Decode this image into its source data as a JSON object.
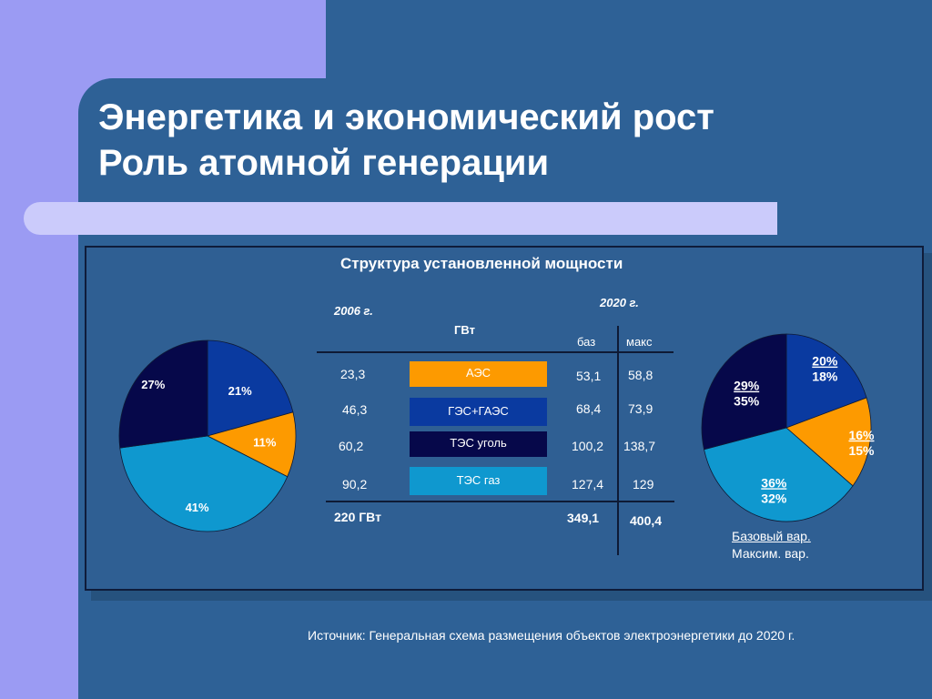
{
  "title": {
    "line1": "Энергетика и экономический рост",
    "line2": "Роль атомной генерации"
  },
  "panel_title": "Структура установленной мощности",
  "unit": "ГВт",
  "year_left": "2006 г.",
  "year_right": "2020 г.",
  "col_base": "баз",
  "col_max": "макс",
  "colors": {
    "aes": "#fd9a00",
    "ges": "#0a3aa0",
    "tes_coal": "#06084a",
    "tes_gas": "#0f98cf"
  },
  "rows": [
    {
      "label": "АЭС",
      "v2006": "23,3",
      "base": "53,1",
      "max": "58,8"
    },
    {
      "label": "ГЭС+ГАЭС",
      "v2006": "46,3",
      "base": "68,4",
      "max": "73,9"
    },
    {
      "label": "ТЭС уголь",
      "v2006": "60,2",
      "base": "100,2",
      "max": "138,7"
    },
    {
      "label": "ТЭС газ",
      "v2006": "90,2",
      "base": "127,4",
      "max": "129"
    }
  ],
  "totals": {
    "v2006": "220 ГВт",
    "base": "349,1",
    "max": "400,4"
  },
  "legend": {
    "base": "Базовый вар.",
    "max": "Максим. вар."
  },
  "source": "Источник: Генеральная схема размещения объектов электроэнергетики до 2020 г.",
  "chart_data": [
    {
      "type": "pie",
      "title": "2006 г.",
      "categories": [
        "ГЭС+ГАЭС",
        "АЭС",
        "ТЭС газ",
        "ТЭС уголь"
      ],
      "values": [
        21,
        11,
        41,
        27
      ],
      "labels": [
        "21%",
        "11%",
        "41%",
        "27%"
      ],
      "colors": [
        "#0a3aa0",
        "#fd9a00",
        "#0f98cf",
        "#06084a"
      ]
    },
    {
      "type": "pie",
      "title": "2020 г.",
      "categories": [
        "ГЭС+ГАЭС",
        "АЭС",
        "ТЭС газ",
        "ТЭС уголь"
      ],
      "series": [
        {
          "name": "Базовый вар.",
          "values": [
            20,
            16,
            36,
            29
          ],
          "labels": [
            "20%",
            "16%",
            "36%",
            "29%"
          ]
        },
        {
          "name": "Максим. вар.",
          "values": [
            18,
            15,
            32,
            35
          ],
          "labels": [
            "18%",
            "15%",
            "32%",
            "35%"
          ]
        }
      ],
      "colors": [
        "#0a3aa0",
        "#fd9a00",
        "#0f98cf",
        "#06084a"
      ]
    }
  ]
}
